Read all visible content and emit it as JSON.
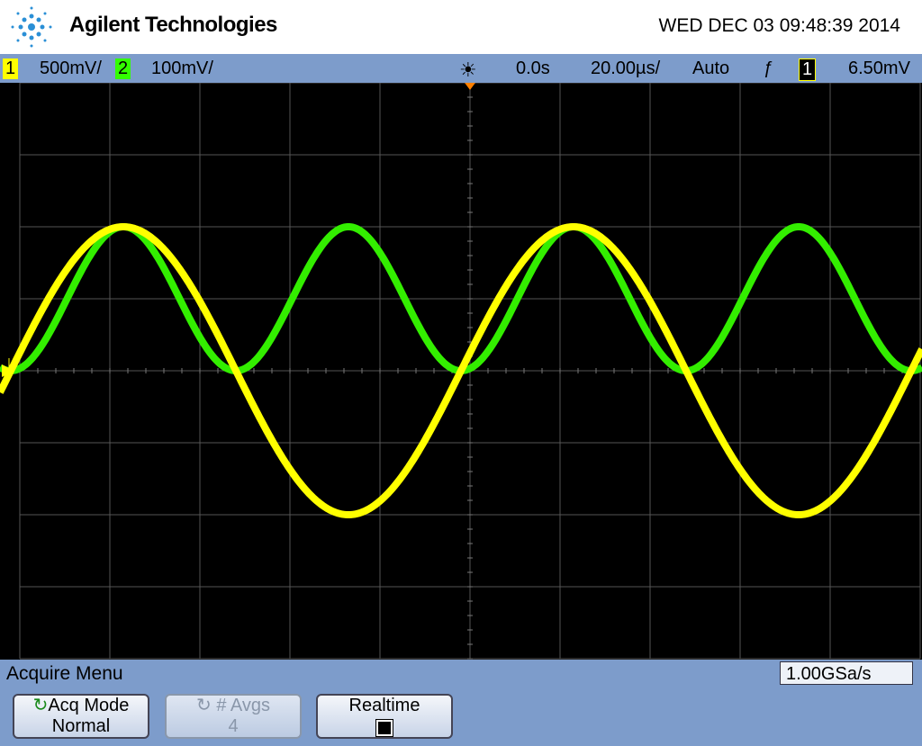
{
  "header": {
    "brand": "Agilent Technologies",
    "datetime": "WED DEC 03 09:48:39 2014"
  },
  "status_bar": {
    "ch1_label": "1",
    "ch1_scale": "500mV/",
    "ch2_label": "2",
    "ch2_scale": "100mV/",
    "time_delay": "0.0s",
    "time_scale": "20.00µs/",
    "trigger_mode": "Auto",
    "trigger_source": "1",
    "trigger_level": "6.50mV"
  },
  "menu": {
    "title": "Acquire Menu",
    "sample_rate": "1.00GSa/s",
    "softkeys": [
      {
        "label": "Acq Mode",
        "value": "Normal"
      },
      {
        "label": "# Avgs",
        "value": "4"
      },
      {
        "label": "Realtime"
      }
    ]
  }
}
